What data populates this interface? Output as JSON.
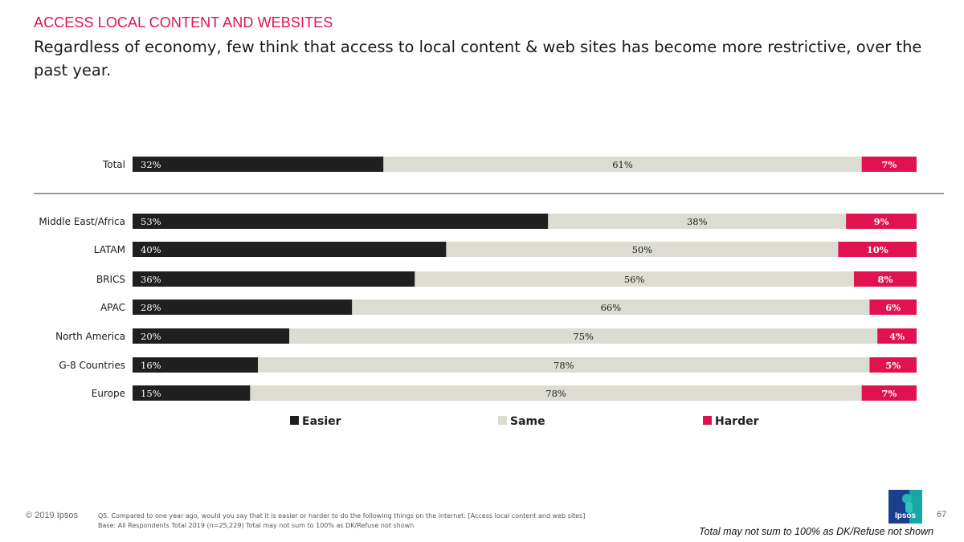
{
  "header": {
    "kicker": "ACCESS LOCAL CONTENT AND WEBSITES",
    "headline": "Regardless of economy, few think that access to local content & web sites has become more restrictive, over the past year."
  },
  "colors": {
    "easier": "#1f1f1f",
    "same": "#dddcd3",
    "harder": "#e0124f",
    "kicker": "#e0124f"
  },
  "chart_data": {
    "type": "bar",
    "orientation": "horizontal",
    "stacked": true,
    "xlim": [
      0,
      100
    ],
    "grid": false,
    "legend_position": "bottom",
    "categories": [
      "Total",
      "Middle East/Africa",
      "LATAM",
      "BRICS",
      "APAC",
      "North America",
      "G-8 Countries",
      "Europe"
    ],
    "series": [
      {
        "name": "Easier",
        "values": [
          32,
          53,
          40,
          36,
          28,
          20,
          16,
          15
        ],
        "labels": [
          "32%",
          "53%",
          "40%",
          "36%",
          "28%",
          "20%",
          "16%",
          "15%"
        ]
      },
      {
        "name": "Same",
        "values": [
          61,
          38,
          50,
          56,
          66,
          75,
          78,
          78
        ],
        "labels": [
          "61%",
          "38%",
          "50%",
          "56%",
          "66%",
          "75%",
          "78%",
          "78%"
        ]
      },
      {
        "name": "Harder",
        "values": [
          7,
          9,
          10,
          8,
          6,
          4,
          5,
          7
        ],
        "labels": [
          "7%",
          "9%",
          "10%",
          "8%",
          "6%",
          "4%",
          "5%",
          "7%"
        ]
      }
    ]
  },
  "footer": {
    "copyright": "© 2019 Ipsos",
    "question": "Q5. Compared to one year ago, would you say that it is easier or harder to do the following things on the internet: [Access local content and web sites]",
    "base": "Base: All Respondents Total 2019 (n=25,229) Total may not sum to 100% as DK/Refuse not shown",
    "logo_text": "Ipsos",
    "page_number": "67",
    "disclaimer": "Total may not sum to 100% as DK/Refuse not shown"
  }
}
